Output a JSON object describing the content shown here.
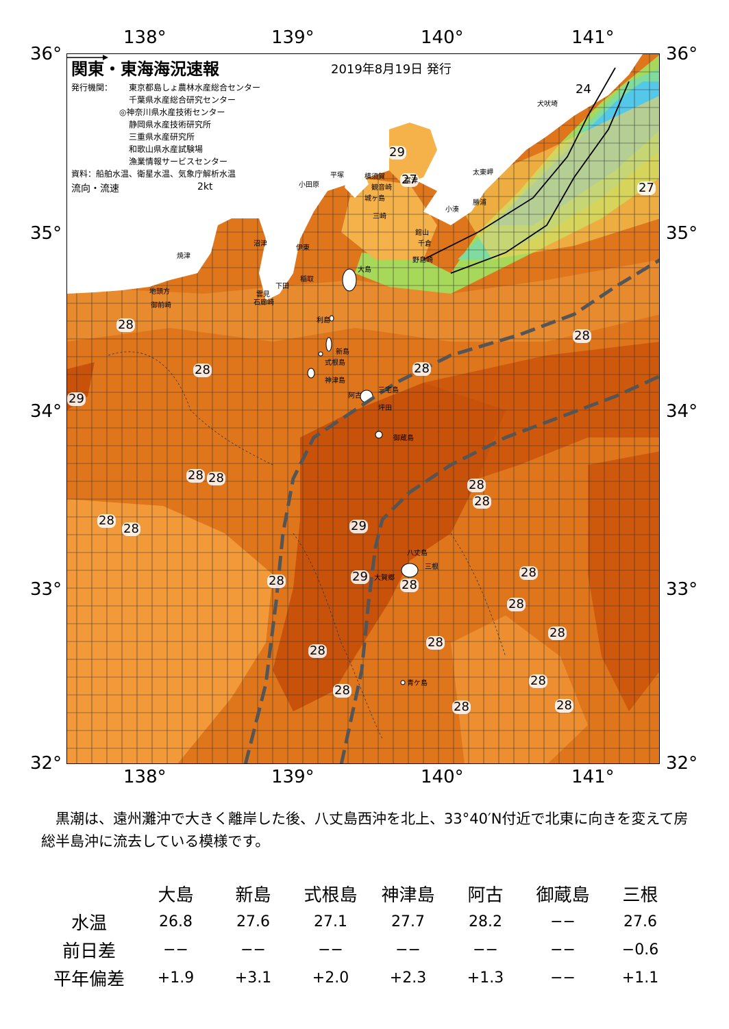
{
  "axes": {
    "lon_ticks": [
      "138°",
      "139°",
      "140°",
      "141°"
    ],
    "lat_ticks": [
      "36°",
      "35°",
      "34°",
      "33°",
      "32°"
    ]
  },
  "map": {
    "title": "関東・東海海況速報",
    "date": "2019年8月19日 発行",
    "issuer_label": "発行機関：",
    "issuers": [
      "東京都島しょ農林水産総合センター",
      "千葉県水産総合研究センター",
      "◎神奈川県水産技術センター",
      "静岡県水産技術研究所",
      "三重県水産研究所",
      "和歌山県水産試験場",
      "漁業情報サービスセンター"
    ],
    "source": "資料：船舶水温、衛星水温、気象庁解析水温",
    "flow_legend": "流向・流速",
    "flow_unit": "2kt",
    "temp_labels": [
      "28",
      "28",
      "29",
      "28",
      "28",
      "28",
      "28",
      "28",
      "24",
      "27",
      "29",
      "27",
      "28",
      "28",
      "29",
      "29",
      "28",
      "28",
      "28",
      "28",
      "28",
      "28",
      "28",
      "28",
      "28",
      "28",
      "28",
      "28"
    ],
    "places": [
      "犬吠埼",
      "太東岬",
      "勝浦",
      "小湊",
      "館山",
      "千倉",
      "野島崎",
      "富津",
      "観音崎",
      "横須賀",
      "平塚",
      "小田原",
      "城ヶ島",
      "三崎",
      "沼津",
      "伊東",
      "稲取",
      "下田",
      "石廊崎",
      "雲見",
      "焼津",
      "地頭方",
      "御前崎",
      "大島",
      "利島",
      "新島",
      "式根島",
      "神津島",
      "三宅島",
      "阿古",
      "坪田",
      "御蔵島",
      "八丈島",
      "三根",
      "大賀郷",
      "青ケ島"
    ],
    "colors": {
      "kuroshio_path": "#555555",
      "warm": "#e0761c",
      "warmer": "#c9520a",
      "cool": "#54c8e8"
    }
  },
  "description": "　黒潮は、遠州灘沖で大きく離岸した後、八丈島西沖を北上、33°40′N付近で北東に向きを変えて房総半島沖に流去している模様です。",
  "table": {
    "columns": [
      "大島",
      "新島",
      "式根島",
      "神津島",
      "阿古",
      "御蔵島",
      "三根"
    ],
    "rows": [
      {
        "label": "水温",
        "values": [
          "26.8",
          "27.6",
          "27.1",
          "27.7",
          "28.2",
          "−−",
          "27.6"
        ]
      },
      {
        "label": "前日差",
        "values": [
          "−−",
          "−−",
          "−−",
          "−−",
          "−−",
          "−−",
          "−0.6"
        ]
      },
      {
        "label": "平年偏差",
        "values": [
          "+1.9",
          "+3.1",
          "+2.0",
          "+2.3",
          "+1.3",
          "−−",
          "+1.1"
        ]
      }
    ]
  }
}
